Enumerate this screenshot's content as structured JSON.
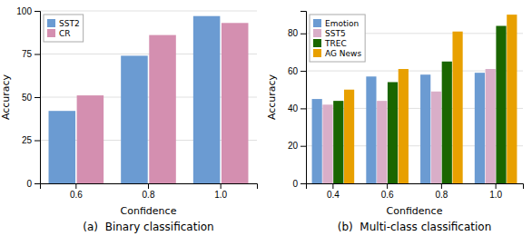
{
  "chart_data": [
    {
      "type": "bar",
      "title": "(a)  Binary classification",
      "x_label": "Confidence",
      "y_label": "Accuracy",
      "categories": [
        "0.6",
        "0.8",
        "1.0"
      ],
      "series": [
        {
          "name": "SST2",
          "color": "#6b9bd2",
          "values": [
            42,
            74,
            97
          ]
        },
        {
          "name": "CR",
          "color": "#d48fb0",
          "values": [
            51,
            86,
            93
          ]
        }
      ],
      "ylim": [
        0,
        100
      ],
      "yticks": [
        0,
        25,
        50,
        75,
        100
      ],
      "grid": true,
      "legend": "upper left"
    },
    {
      "type": "bar",
      "title": "(b)  Multi-class classification",
      "x_label": "Confidence",
      "y_label": "Accuracy",
      "categories": [
        "0.4",
        "0.6",
        "0.8",
        "1.0"
      ],
      "series": [
        {
          "name": "Emotion",
          "color": "#6b9bd2",
          "values": [
            45,
            57,
            58,
            59
          ]
        },
        {
          "name": "SST5",
          "color": "#d9aec8",
          "values": [
            42,
            44,
            49,
            61
          ]
        },
        {
          "name": "TREC",
          "color": "#1a6600",
          "values": [
            44,
            54,
            65,
            84
          ]
        },
        {
          "name": "AG News",
          "color": "#e8a000",
          "values": [
            50,
            61,
            81,
            90
          ]
        }
      ],
      "ylim": [
        0,
        92
      ],
      "yticks": [
        0,
        20,
        40,
        60,
        80
      ],
      "grid": true,
      "legend": "upper left"
    }
  ]
}
